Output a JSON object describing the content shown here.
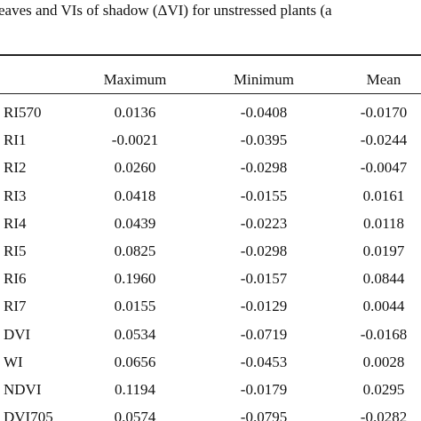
{
  "caption": "eaves and VIs of shadow (ΔVI) for unstressed plants (a",
  "table": {
    "header": [
      "Maximum",
      "Minimum",
      "Mean"
    ],
    "rows": [
      [
        "RI570",
        "0.0136",
        "-0.0408",
        "-0.0170"
      ],
      [
        "RI1",
        "-0.0021",
        "-0.0395",
        "-0.0244"
      ],
      [
        "RI2",
        "0.0260",
        "-0.0298",
        "-0.0047"
      ],
      [
        "RI3",
        "0.0418",
        "-0.0155",
        "0.0161"
      ],
      [
        "RI4",
        "0.0439",
        "-0.0223",
        "0.0118"
      ],
      [
        "RI5",
        "0.0825",
        "-0.0298",
        "0.0197"
      ],
      [
        "RI6",
        "0.1960",
        "-0.0157",
        "0.0844"
      ],
      [
        "RI7",
        "0.0155",
        "-0.0129",
        "0.0044"
      ],
      [
        "DVI",
        "0.0534",
        "-0.0719",
        "-0.0168"
      ],
      [
        "WI",
        "0.0656",
        "-0.0453",
        "0.0028"
      ],
      [
        "NDVI",
        "0.1194",
        "-0.0179",
        "0.0295"
      ],
      [
        "DVI705",
        "0.0574",
        "-0.0795",
        "-0.0282"
      ]
    ]
  }
}
